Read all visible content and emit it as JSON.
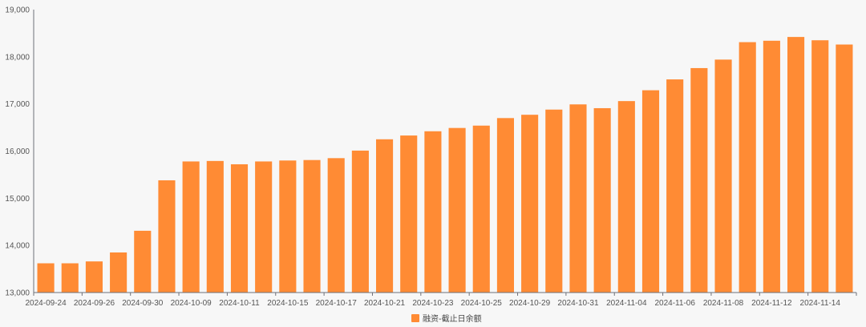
{
  "colors": {
    "bar": "#ff8b34",
    "axis": "#6e7079",
    "background": "#f7f7f7"
  },
  "chart_data": {
    "type": "bar",
    "categories": [
      "2024-09-24",
      "2024-09-25",
      "2024-09-26",
      "2024-09-27",
      "2024-09-30",
      "2024-10-08",
      "2024-10-09",
      "2024-10-10",
      "2024-10-11",
      "2024-10-14",
      "2024-10-15",
      "2024-10-16",
      "2024-10-17",
      "2024-10-18",
      "2024-10-21",
      "2024-10-22",
      "2024-10-23",
      "2024-10-24",
      "2024-10-25",
      "2024-10-28",
      "2024-10-29",
      "2024-10-30",
      "2024-10-31",
      "2024-11-01",
      "2024-11-04",
      "2024-11-05",
      "2024-11-06",
      "2024-11-07",
      "2024-11-08",
      "2024-11-11",
      "2024-11-12",
      "2024-11-13",
      "2024-11-14",
      "2024-11-15"
    ],
    "x_tick_labels": [
      "2024-09-24",
      "2024-09-26",
      "2024-09-30",
      "2024-10-09",
      "2024-10-11",
      "2024-10-15",
      "2024-10-17",
      "2024-10-21",
      "2024-10-23",
      "2024-10-25",
      "2024-10-29",
      "2024-10-31",
      "2024-11-04",
      "2024-11-06",
      "2024-11-08",
      "2024-11-12",
      "2024-11-14"
    ],
    "series": [
      {
        "name": "融资-截止日余额",
        "values": [
          13620,
          13620,
          13660,
          13850,
          14310,
          15380,
          15780,
          15790,
          15720,
          15780,
          15800,
          15810,
          15850,
          16010,
          16250,
          16330,
          16420,
          16490,
          16540,
          16700,
          16770,
          16880,
          16990,
          16910,
          17060,
          17290,
          17520,
          17760,
          17940,
          18310,
          18340,
          18420,
          18350,
          18260
        ]
      }
    ],
    "ylim": [
      13000,
      19000
    ],
    "y_ticks": [
      "13,000",
      "14,000",
      "15,000",
      "16,000",
      "17,000",
      "18,000",
      "19,000"
    ],
    "legend_position": "bottom-center",
    "grid": false
  }
}
